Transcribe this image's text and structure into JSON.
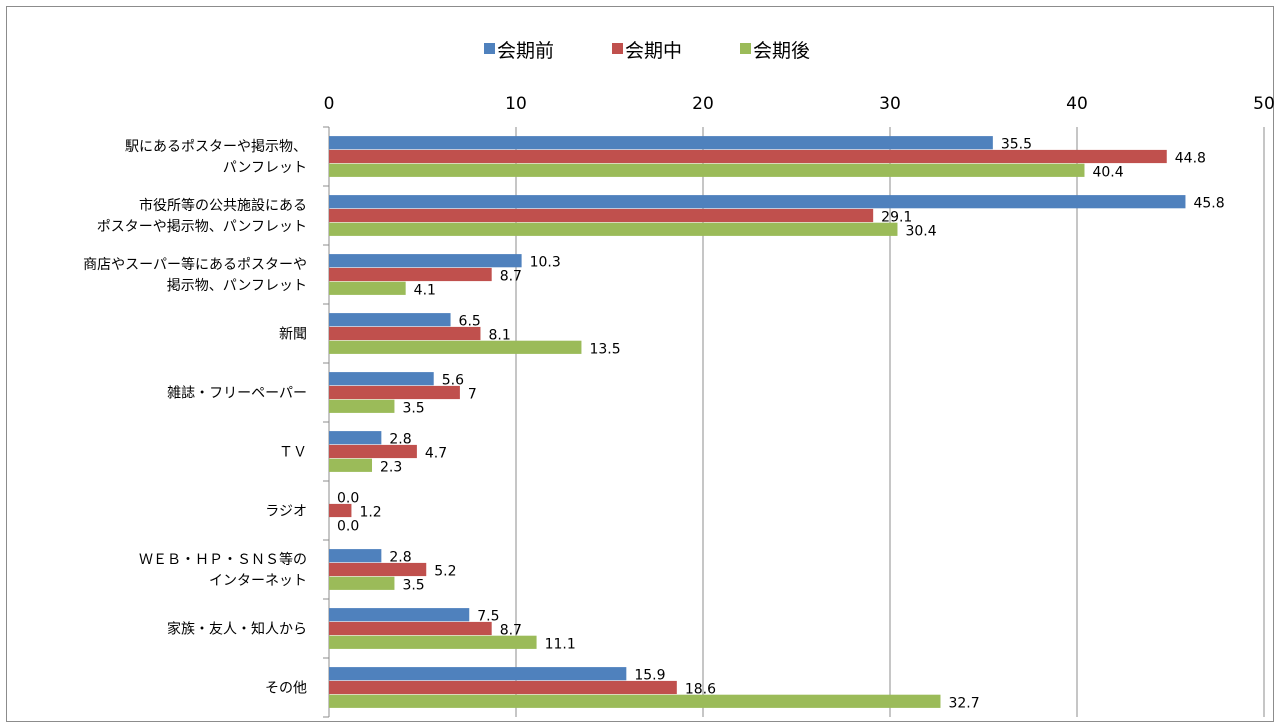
{
  "chart_data": {
    "type": "bar",
    "orientation": "horizontal",
    "title": "",
    "xlabel": "",
    "ylabel": "",
    "xlim": [
      0,
      50
    ],
    "x_ticks": [
      "0",
      "10",
      "20",
      "30",
      "40",
      "50"
    ],
    "grid": "vertical",
    "legend_position": "top",
    "categories": [
      [
        "駅にあるポスターや掲示物、",
        "パンフレット"
      ],
      [
        "市役所等の公共施設にある",
        "ポスターや掲示物、パンフレット"
      ],
      [
        "商店やスーパー等にあるポスターや",
        "掲示物、パンフレット"
      ],
      [
        "新聞"
      ],
      [
        "雑誌・フリーペーパー"
      ],
      [
        "ＴＶ"
      ],
      [
        "ラジオ"
      ],
      [
        "ＷＥＢ・ＨＰ・ＳＮＳ等の",
        "インターネット"
      ],
      [
        "家族・友人・知人から"
      ],
      [
        "その他"
      ]
    ],
    "series": [
      {
        "name": "会期前",
        "color": "#4f81bd",
        "values": [
          35.5,
          45.8,
          10.3,
          6.5,
          5.6,
          2.8,
          0.0,
          2.8,
          7.5,
          15.9
        ],
        "labels": [
          "35.5",
          "45.8",
          "10.3",
          "6.5",
          "5.6",
          "2.8",
          "0.0",
          "2.8",
          "7.5",
          "15.9"
        ]
      },
      {
        "name": "会期中",
        "color": "#c0504d",
        "values": [
          44.8,
          29.1,
          8.7,
          8.1,
          7,
          4.7,
          1.2,
          5.2,
          8.7,
          18.6
        ],
        "labels": [
          "44.8",
          "29.1",
          "8.7",
          "8.1",
          "7",
          "4.7",
          "1.2",
          "5.2",
          "8.7",
          "18.6"
        ]
      },
      {
        "name": "会期後",
        "color": "#9bbb59",
        "values": [
          40.4,
          30.4,
          4.1,
          13.5,
          3.5,
          2.3,
          0.0,
          3.5,
          11.1,
          32.7
        ],
        "labels": [
          "40.4",
          "30.4",
          "4.1",
          "13.5",
          "3.5",
          "2.3",
          "0.0",
          "3.5",
          "11.1",
          "32.7"
        ]
      }
    ]
  }
}
